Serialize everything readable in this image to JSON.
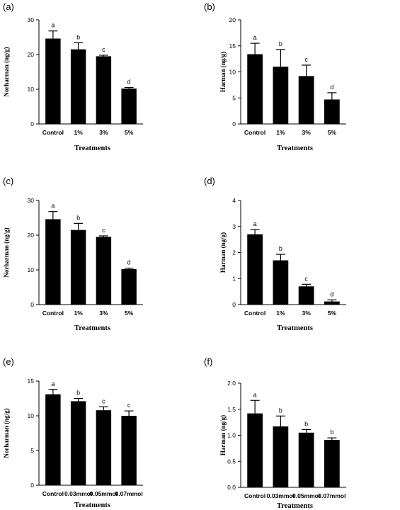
{
  "chart_data": [
    {
      "type": "bar",
      "panel": "(a)",
      "categories": [
        "Control",
        "1%",
        "3%",
        "5%"
      ],
      "values": [
        24.6,
        21.5,
        19.5,
        10.2
      ],
      "errors": [
        2.2,
        1.9,
        0.3,
        0.3
      ],
      "letters": [
        "a",
        "b",
        "c",
        "d"
      ],
      "xlabel": "Treatments",
      "ylabel": "Norharman (ng/g)",
      "ylim": [
        0,
        30
      ],
      "yticks": [
        0,
        10,
        20,
        30
      ],
      "ytick_labels": [
        "0",
        "10",
        "20",
        "30"
      ],
      "bar_color": "#000000"
    },
    {
      "type": "bar",
      "panel": "(b)",
      "categories": [
        "Control",
        "1%",
        "3%",
        "5%"
      ],
      "values": [
        13.4,
        11.0,
        9.2,
        4.7
      ],
      "errors": [
        2.1,
        3.3,
        2.1,
        1.3
      ],
      "letters": [
        "a",
        "b",
        "c",
        "d"
      ],
      "xlabel": "Treatments",
      "ylabel": "Harman (ng/g)",
      "ylim": [
        0,
        20
      ],
      "yticks": [
        0,
        5,
        10,
        15,
        20
      ],
      "ytick_labels": [
        "0",
        "5",
        "10",
        "15",
        "20"
      ],
      "bar_color": "#000000"
    },
    {
      "type": "bar",
      "panel": "(c)",
      "categories": [
        "Control",
        "1%",
        "3%",
        "5%"
      ],
      "values": [
        24.6,
        21.5,
        19.5,
        10.2
      ],
      "errors": [
        2.2,
        1.9,
        0.3,
        0.3
      ],
      "letters": [
        "a",
        "b",
        "c",
        "d"
      ],
      "xlabel": "Treatments",
      "ylabel": "Norharman (ng/g)",
      "ylim": [
        0,
        30
      ],
      "yticks": [
        0,
        10,
        20,
        30
      ],
      "ytick_labels": [
        "0",
        "10",
        "20",
        "30"
      ],
      "bar_color": "#000000"
    },
    {
      "type": "bar",
      "panel": "(d)",
      "categories": [
        "Control",
        "1%",
        "3%",
        "5%"
      ],
      "values": [
        2.7,
        1.7,
        0.7,
        0.12
      ],
      "errors": [
        0.18,
        0.23,
        0.08,
        0.06
      ],
      "letters": [
        "a",
        "b",
        "c",
        "d"
      ],
      "xlabel": "Treatments",
      "ylabel": "Harman (ng/g)",
      "ylim": [
        0,
        4
      ],
      "yticks": [
        0,
        1,
        2,
        3,
        4
      ],
      "ytick_labels": [
        "0",
        "1",
        "2",
        "3",
        "4"
      ],
      "bar_color": "#000000"
    },
    {
      "type": "bar",
      "panel": "(e)",
      "categories": [
        "Control",
        "0.03mmol",
        "0.05mmol",
        "0.07mmol"
      ],
      "values": [
        13.1,
        12.1,
        10.8,
        10.0
      ],
      "errors": [
        0.7,
        0.4,
        0.5,
        0.7
      ],
      "letters": [
        "a",
        "b",
        "c",
        "c"
      ],
      "xlabel": "Treatments",
      "ylabel": "Norharman (ng/g)",
      "ylim": [
        0,
        15
      ],
      "yticks": [
        0,
        5,
        10,
        15
      ],
      "ytick_labels": [
        "0",
        "5",
        "10",
        "15"
      ],
      "bar_color": "#000000"
    },
    {
      "type": "bar",
      "panel": "(f)",
      "categories": [
        "Control",
        "0.03mmol",
        "0.05mmol",
        "0.07mmol"
      ],
      "values": [
        1.42,
        1.17,
        1.05,
        0.91
      ],
      "errors": [
        0.25,
        0.2,
        0.06,
        0.04
      ],
      "letters": [
        "a",
        "b",
        "b",
        "b"
      ],
      "xlabel": "Treatments",
      "ylabel": "Harman (ng/g)",
      "ylim": [
        0,
        2
      ],
      "yticks": [
        0,
        0.5,
        1,
        1.5,
        2
      ],
      "ytick_labels": [
        "0.0",
        "0.5",
        "1.0",
        "1.5",
        "2.0"
      ],
      "bar_color": "#000000"
    }
  ]
}
